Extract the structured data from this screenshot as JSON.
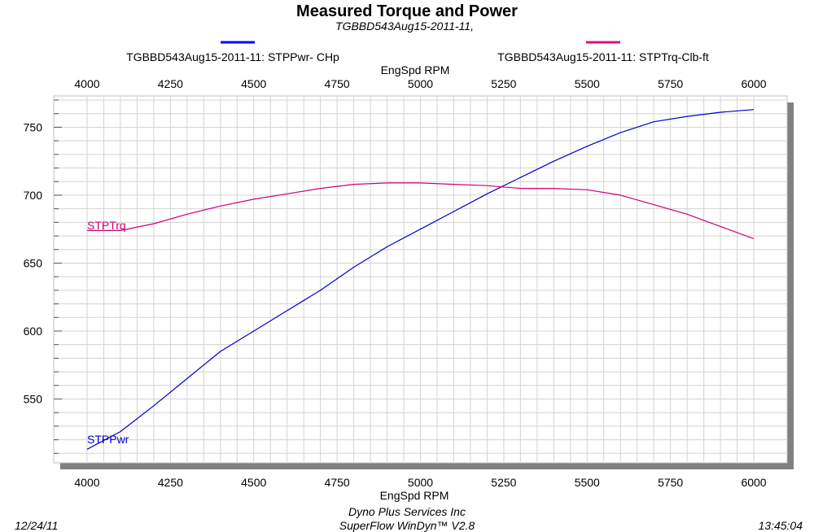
{
  "chart_data": {
    "type": "line",
    "title": "Measured Torque and Power",
    "subtitle": "TGBBD543Aug15-2011-11,",
    "xlabel": "EngSpd  RPM",
    "x_top_label": "EngSpd  RPM",
    "xlim": [
      3900,
      6100
    ],
    "ylim": [
      503,
      773
    ],
    "x_ticks": [
      4000,
      4250,
      4500,
      4750,
      5000,
      5250,
      5500,
      5750,
      6000
    ],
    "y_ticks": [
      550,
      600,
      650,
      700,
      750
    ],
    "grid": true,
    "series": [
      {
        "name": "TGBBD543Aug15-2011-11: STPPwr- CHp",
        "label": "STPPwr",
        "color": "#0000CC",
        "legend_color": "#0000FF",
        "x": [
          4000,
          4100,
          4200,
          4300,
          4400,
          4500,
          4600,
          4700,
          4800,
          4900,
          5000,
          5100,
          5200,
          5300,
          5400,
          5500,
          5600,
          5700,
          5800,
          5900,
          6000
        ],
        "y": [
          513,
          526,
          545,
          565,
          585,
          600,
          615,
          630,
          647,
          662,
          675,
          688,
          701,
          713,
          725,
          736,
          746,
          754,
          758,
          761,
          763
        ]
      },
      {
        "name": "TGBBD543Aug15-2011-11: STPTrq-Clb-ft",
        "label": "STPTrq",
        "color": "#CC0077",
        "legend_color": "#DD1177",
        "x": [
          4000,
          4100,
          4200,
          4300,
          4400,
          4500,
          4600,
          4700,
          4800,
          4900,
          5000,
          5100,
          5200,
          5300,
          5400,
          5500,
          5600,
          5700,
          5800,
          5900,
          6000
        ],
        "y": [
          674,
          674,
          679,
          686,
          692,
          697,
          701,
          705,
          708,
          709,
          709,
          708,
          707,
          705,
          705,
          704,
          700,
          693,
          686,
          677,
          668
        ]
      }
    ]
  },
  "footer": {
    "date": "12/24/11",
    "company": "Dyno Plus Services Inc",
    "software": "SuperFlow WinDyn™ V2.8",
    "time": "13:45:04"
  },
  "colors": {
    "grid": "#D3D3D3",
    "shadow": "#808080",
    "frame": "#C0C0C0"
  }
}
